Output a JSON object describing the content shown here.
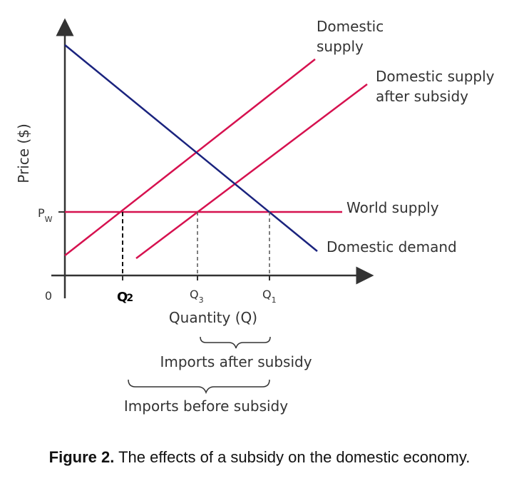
{
  "axes": {
    "ylabel": "Price ($)",
    "xlabel": "Quantity (Q)",
    "origin": "0"
  },
  "price_tick": {
    "main": "P",
    "sub": "W"
  },
  "quantity_ticks": {
    "q2": {
      "main": "Q",
      "sub": "2"
    },
    "q3": {
      "main": "Q",
      "sub": "3"
    },
    "q1": {
      "main": "Q",
      "sub": "1"
    }
  },
  "lines": {
    "domestic_supply": "Domestic supply",
    "domestic_supply_after_subsidy": "Domestic supply after subsidy",
    "world_supply": "World supply",
    "domestic_demand": "Domestic demand"
  },
  "braces": {
    "imports_after_subsidy": "Imports after subsidy",
    "imports_before_subsidy": "Imports before subsidy"
  },
  "caption": {
    "label": "Figure 2.",
    "text": "The effects of a subsidy on the domestic economy."
  },
  "colors": {
    "supply": "#d6114f",
    "demand": "#1a237e",
    "axis": "#333333"
  }
}
